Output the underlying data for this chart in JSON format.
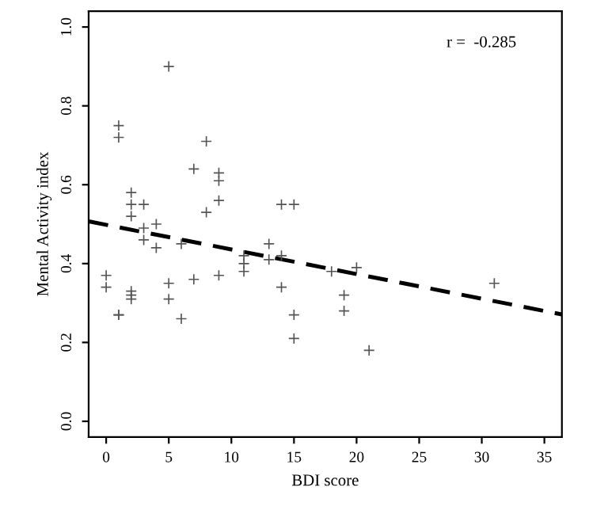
{
  "chart_data": {
    "type": "scatter",
    "xlabel": "BDI score",
    "ylabel": "Mental Activity index",
    "annotations": [
      "r =  -0.285"
    ],
    "xlim": [
      -1.4,
      36.4
    ],
    "ylim": [
      -0.04,
      1.04
    ],
    "xticks": [
      0,
      5,
      10,
      15,
      20,
      25,
      30,
      35
    ],
    "yticks": [
      {
        "value": 0,
        "label": "0.0"
      },
      {
        "value": 0.2,
        "label": "0.2"
      },
      {
        "value": 0.4,
        "label": "0.4"
      },
      {
        "value": 0.6,
        "label": "0.6"
      },
      {
        "value": 0.8,
        "label": "0.8"
      },
      {
        "value": 1,
        "label": "1.0"
      }
    ],
    "grid": false,
    "series": [
      {
        "marker": "cross",
        "color": "#555555",
        "x": [
          1,
          1,
          5,
          8,
          7,
          9,
          9,
          9,
          8,
          14,
          15,
          2,
          2,
          3,
          2,
          3,
          3,
          4,
          4,
          6,
          13,
          11,
          11,
          13,
          14,
          0,
          0,
          2,
          2,
          2,
          1,
          1,
          5,
          5,
          6,
          7,
          9,
          11,
          14,
          15,
          15,
          18,
          20,
          19,
          19,
          21,
          31
        ],
        "values": [
          0.75,
          0.72,
          0.9,
          0.71,
          0.64,
          0.63,
          0.61,
          0.56,
          0.53,
          0.55,
          0.55,
          0.58,
          0.55,
          0.55,
          0.52,
          0.49,
          0.46,
          0.5,
          0.44,
          0.45,
          0.45,
          0.42,
          0.4,
          0.41,
          0.42,
          0.37,
          0.34,
          0.33,
          0.32,
          0.31,
          0.27,
          0.27,
          0.35,
          0.31,
          0.26,
          0.36,
          0.37,
          0.38,
          0.34,
          0.27,
          0.21,
          0.38,
          0.39,
          0.32,
          0.28,
          0.18,
          0.35
        ]
      },
      {
        "type": "line",
        "color": "#000000",
        "line_style": "dashed",
        "x": [
          -1.4,
          36.4
        ],
        "values": [
          0.507,
          0.271
        ]
      }
    ]
  }
}
